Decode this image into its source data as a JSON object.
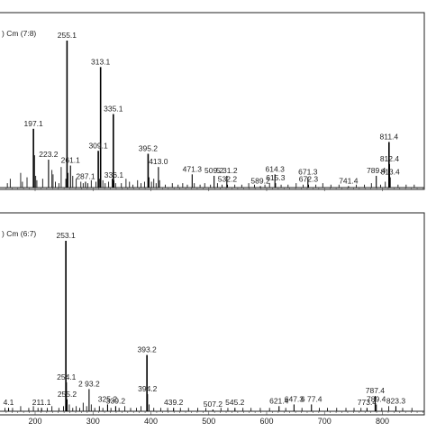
{
  "chart_data": [
    {
      "type": "bar",
      "panel": "top",
      "header": ") Cm (7:8)",
      "xlim": [
        0,
        880
      ],
      "ylim": [
        0,
        100
      ],
      "show_x_tick_labels": false,
      "peaks": [
        {
          "x": 255.1,
          "y": 100,
          "label": "255.1"
        },
        {
          "x": 313.1,
          "y": 82,
          "label": "313.1"
        },
        {
          "x": 335.1,
          "y": 50,
          "label": "335.1"
        },
        {
          "x": 197.1,
          "y": 40,
          "label": "197.1"
        },
        {
          "x": 309.1,
          "y": 25,
          "label": "309.1"
        },
        {
          "x": 261.1,
          "y": 15,
          "label": "261.1"
        },
        {
          "x": 223.2,
          "y": 19,
          "label": "223.2"
        },
        {
          "x": 287.1,
          "y": 4,
          "label": "287.1"
        },
        {
          "x": 336.1,
          "y": 5,
          "label": "336.1"
        },
        {
          "x": 395.2,
          "y": 23,
          "label": "395.2"
        },
        {
          "x": 413.0,
          "y": 14,
          "label": "413.0"
        },
        {
          "x": 471.3,
          "y": 9,
          "label": "471.3"
        },
        {
          "x": 509.2,
          "y": 8,
          "label": "509.2"
        },
        {
          "x": 531.2,
          "y": 8,
          "label": "5 31.2"
        },
        {
          "x": 532.2,
          "y": 2,
          "label": "532.2"
        },
        {
          "x": 589.2,
          "y": 1,
          "label": "589.2"
        },
        {
          "x": 614.3,
          "y": 9,
          "label": "614.3"
        },
        {
          "x": 615.3,
          "y": 3,
          "label": "615.3"
        },
        {
          "x": 671.3,
          "y": 7,
          "label": "671.3"
        },
        {
          "x": 672.3,
          "y": 2,
          "label": "672.3"
        },
        {
          "x": 741.4,
          "y": 1,
          "label": "741.4"
        },
        {
          "x": 789.4,
          "y": 8,
          "label": "789.4"
        },
        {
          "x": 811.4,
          "y": 31,
          "label": "811.4"
        },
        {
          "x": 812.4,
          "y": 16,
          "label": "812.4"
        },
        {
          "x": 813.4,
          "y": 7,
          "label": "813.4"
        }
      ],
      "noise": [
        {
          "x": 152,
          "y": 3
        },
        {
          "x": 157,
          "y": 6
        },
        {
          "x": 175,
          "y": 10
        },
        {
          "x": 178,
          "y": 4
        },
        {
          "x": 186,
          "y": 7
        },
        {
          "x": 199,
          "y": 22
        },
        {
          "x": 201,
          "y": 8
        },
        {
          "x": 203,
          "y": 5
        },
        {
          "x": 213,
          "y": 6
        },
        {
          "x": 229,
          "y": 12
        },
        {
          "x": 231,
          "y": 9
        },
        {
          "x": 235,
          "y": 4
        },
        {
          "x": 241,
          "y": 3
        },
        {
          "x": 245,
          "y": 14
        },
        {
          "x": 253,
          "y": 6
        },
        {
          "x": 257,
          "y": 10
        },
        {
          "x": 265,
          "y": 8
        },
        {
          "x": 271,
          "y": 6
        },
        {
          "x": 279,
          "y": 4
        },
        {
          "x": 283,
          "y": 3
        },
        {
          "x": 291,
          "y": 3
        },
        {
          "x": 297,
          "y": 5
        },
        {
          "x": 305,
          "y": 4
        },
        {
          "x": 311,
          "y": 6
        },
        {
          "x": 317,
          "y": 5
        },
        {
          "x": 321,
          "y": 3
        },
        {
          "x": 327,
          "y": 4
        },
        {
          "x": 333,
          "y": 6
        },
        {
          "x": 339,
          "y": 3
        },
        {
          "x": 349,
          "y": 3
        },
        {
          "x": 357,
          "y": 6
        },
        {
          "x": 363,
          "y": 4
        },
        {
          "x": 369,
          "y": 2
        },
        {
          "x": 377,
          "y": 5
        },
        {
          "x": 383,
          "y": 3
        },
        {
          "x": 389,
          "y": 4
        },
        {
          "x": 397,
          "y": 7
        },
        {
          "x": 401,
          "y": 4
        },
        {
          "x": 405,
          "y": 6
        },
        {
          "x": 409,
          "y": 3
        },
        {
          "x": 415,
          "y": 5
        },
        {
          "x": 425,
          "y": 2
        },
        {
          "x": 437,
          "y": 3
        },
        {
          "x": 447,
          "y": 2
        },
        {
          "x": 455,
          "y": 3
        },
        {
          "x": 463,
          "y": 2
        },
        {
          "x": 475,
          "y": 3
        },
        {
          "x": 485,
          "y": 2
        },
        {
          "x": 493,
          "y": 3
        },
        {
          "x": 503,
          "y": 2
        },
        {
          "x": 515,
          "y": 3
        },
        {
          "x": 523,
          "y": 2
        },
        {
          "x": 545,
          "y": 2
        },
        {
          "x": 557,
          "y": 2
        },
        {
          "x": 569,
          "y": 3
        },
        {
          "x": 579,
          "y": 2
        },
        {
          "x": 597,
          "y": 2
        },
        {
          "x": 605,
          "y": 3
        },
        {
          "x": 625,
          "y": 2
        },
        {
          "x": 637,
          "y": 2
        },
        {
          "x": 651,
          "y": 3
        },
        {
          "x": 663,
          "y": 2
        },
        {
          "x": 685,
          "y": 2
        },
        {
          "x": 697,
          "y": 3
        },
        {
          "x": 711,
          "y": 2
        },
        {
          "x": 725,
          "y": 2
        },
        {
          "x": 755,
          "y": 2
        },
        {
          "x": 769,
          "y": 2
        },
        {
          "x": 781,
          "y": 3
        },
        {
          "x": 797,
          "y": 2
        },
        {
          "x": 805,
          "y": 4
        },
        {
          "x": 827,
          "y": 2
        },
        {
          "x": 841,
          "y": 2
        },
        {
          "x": 855,
          "y": 2
        }
      ]
    },
    {
      "type": "bar",
      "panel": "bottom",
      "header": ") Cm (6:7)",
      "xlim": [
        0,
        880
      ],
      "ylim": [
        0,
        100
      ],
      "x_ticks": [
        200,
        300,
        400,
        500,
        600,
        700,
        800
      ],
      "x_tick_labels": [
        "200",
        "300",
        "400",
        "500",
        "600",
        "700",
        "800"
      ],
      "peaks": [
        {
          "x": 253.1,
          "y": 100,
          "label": "253.1"
        },
        {
          "x": 393.2,
          "y": 33,
          "label": "393.2"
        },
        {
          "x": 254.1,
          "y": 17,
          "label": "254.1"
        },
        {
          "x": 293.2,
          "y": 13,
          "label": "2 93.2"
        },
        {
          "x": 394.2,
          "y": 10,
          "label": "394.2"
        },
        {
          "x": 255.2,
          "y": 7,
          "label": "255.2"
        },
        {
          "x": 325.2,
          "y": 4,
          "label": "325.2"
        },
        {
          "x": 339.2,
          "y": 3,
          "label": "339.2"
        },
        {
          "x": 439.2,
          "y": 2,
          "label": "439.2"
        },
        {
          "x": 211.1,
          "y": 2,
          "label": "211.1"
        },
        {
          "x": 154.1,
          "y": 2,
          "label": "4.1"
        },
        {
          "x": 507.2,
          "y": 1,
          "label": "507.2"
        },
        {
          "x": 545.2,
          "y": 2,
          "label": "545.2"
        },
        {
          "x": 621.4,
          "y": 3,
          "label": "621.4"
        },
        {
          "x": 647.3,
          "y": 4,
          "label": "647.3"
        },
        {
          "x": 677.4,
          "y": 4,
          "label": "6 77.4"
        },
        {
          "x": 773.4,
          "y": 2,
          "label": "773.4"
        },
        {
          "x": 787.4,
          "y": 9,
          "label": "787.4"
        },
        {
          "x": 789.4,
          "y": 4,
          "label": "789.4"
        },
        {
          "x": 823.3,
          "y": 3,
          "label": "823.3"
        }
      ],
      "noise": [
        {
          "x": 148,
          "y": 2
        },
        {
          "x": 161,
          "y": 2
        },
        {
          "x": 175,
          "y": 3
        },
        {
          "x": 189,
          "y": 2
        },
        {
          "x": 197,
          "y": 3
        },
        {
          "x": 205,
          "y": 2
        },
        {
          "x": 221,
          "y": 2
        },
        {
          "x": 229,
          "y": 3
        },
        {
          "x": 241,
          "y": 2
        },
        {
          "x": 249,
          "y": 3
        },
        {
          "x": 259,
          "y": 4
        },
        {
          "x": 265,
          "y": 2
        },
        {
          "x": 271,
          "y": 3
        },
        {
          "x": 277,
          "y": 2
        },
        {
          "x": 283,
          "y": 5
        },
        {
          "x": 289,
          "y": 3
        },
        {
          "x": 297,
          "y": 4
        },
        {
          "x": 303,
          "y": 2
        },
        {
          "x": 311,
          "y": 3
        },
        {
          "x": 317,
          "y": 2
        },
        {
          "x": 331,
          "y": 2
        },
        {
          "x": 345,
          "y": 2
        },
        {
          "x": 355,
          "y": 3
        },
        {
          "x": 365,
          "y": 2
        },
        {
          "x": 375,
          "y": 2
        },
        {
          "x": 383,
          "y": 3
        },
        {
          "x": 397,
          "y": 4
        },
        {
          "x": 405,
          "y": 2
        },
        {
          "x": 417,
          "y": 2
        },
        {
          "x": 429,
          "y": 2
        },
        {
          "x": 451,
          "y": 2
        },
        {
          "x": 465,
          "y": 2
        },
        {
          "x": 481,
          "y": 2
        },
        {
          "x": 495,
          "y": 2
        },
        {
          "x": 521,
          "y": 2
        },
        {
          "x": 533,
          "y": 2
        },
        {
          "x": 559,
          "y": 2
        },
        {
          "x": 573,
          "y": 2
        },
        {
          "x": 589,
          "y": 2
        },
        {
          "x": 605,
          "y": 2
        },
        {
          "x": 633,
          "y": 2
        },
        {
          "x": 661,
          "y": 2
        },
        {
          "x": 691,
          "y": 2
        },
        {
          "x": 705,
          "y": 2
        },
        {
          "x": 721,
          "y": 2
        },
        {
          "x": 737,
          "y": 2
        },
        {
          "x": 751,
          "y": 2
        },
        {
          "x": 763,
          "y": 2
        },
        {
          "x": 799,
          "y": 2
        },
        {
          "x": 811,
          "y": 3
        },
        {
          "x": 835,
          "y": 2
        },
        {
          "x": 851,
          "y": 2
        }
      ]
    }
  ]
}
